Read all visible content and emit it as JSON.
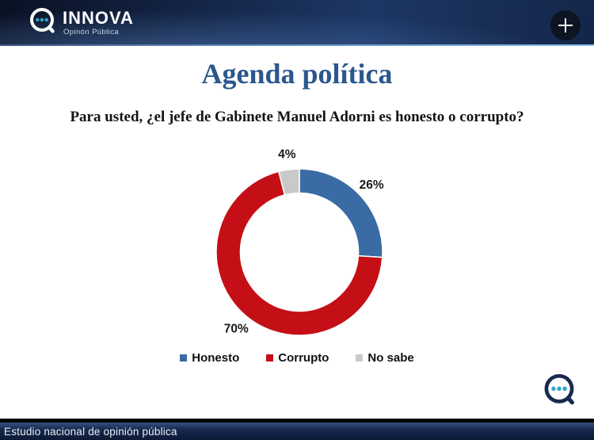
{
  "header": {
    "brand": "INNOVA",
    "brand_sub": "Opinón Pública"
  },
  "icons": {
    "header_plus": "plus-icon",
    "brand_mark": "innova-q-speech-bubble-icon",
    "corner_mark": "innova-q-speech-bubble-icon"
  },
  "slide": {
    "title": "Agenda política",
    "question": "Para usted, ¿el jefe de Gabinete Manuel Adorni es honesto o corrupto?"
  },
  "chart_data": {
    "type": "pie",
    "subtype": "donut",
    "title": "Para usted, ¿el jefe de Gabinete Manuel Adorni es honesto o corrupto?",
    "categories": [
      "Honesto",
      "Corrupto",
      "No sabe"
    ],
    "values": [
      26,
      70,
      4
    ],
    "labels": [
      "26%",
      "70%",
      "4%"
    ],
    "colors": [
      "#3A6BA4",
      "#C50F17",
      "#C9C9C9"
    ],
    "units": "percent",
    "start_angle_deg": 0,
    "direction": "clockwise",
    "donut_hole_ratio": 0.71,
    "legend_position": "bottom",
    "grid": false
  },
  "footer": {
    "text": "Estudio nacional de opinión pública"
  },
  "colors": {
    "header_navy": "#16294e",
    "title_blue": "#2B578E",
    "accent_teal": "#2FA8CC",
    "logo_navy": "#182A4E"
  }
}
